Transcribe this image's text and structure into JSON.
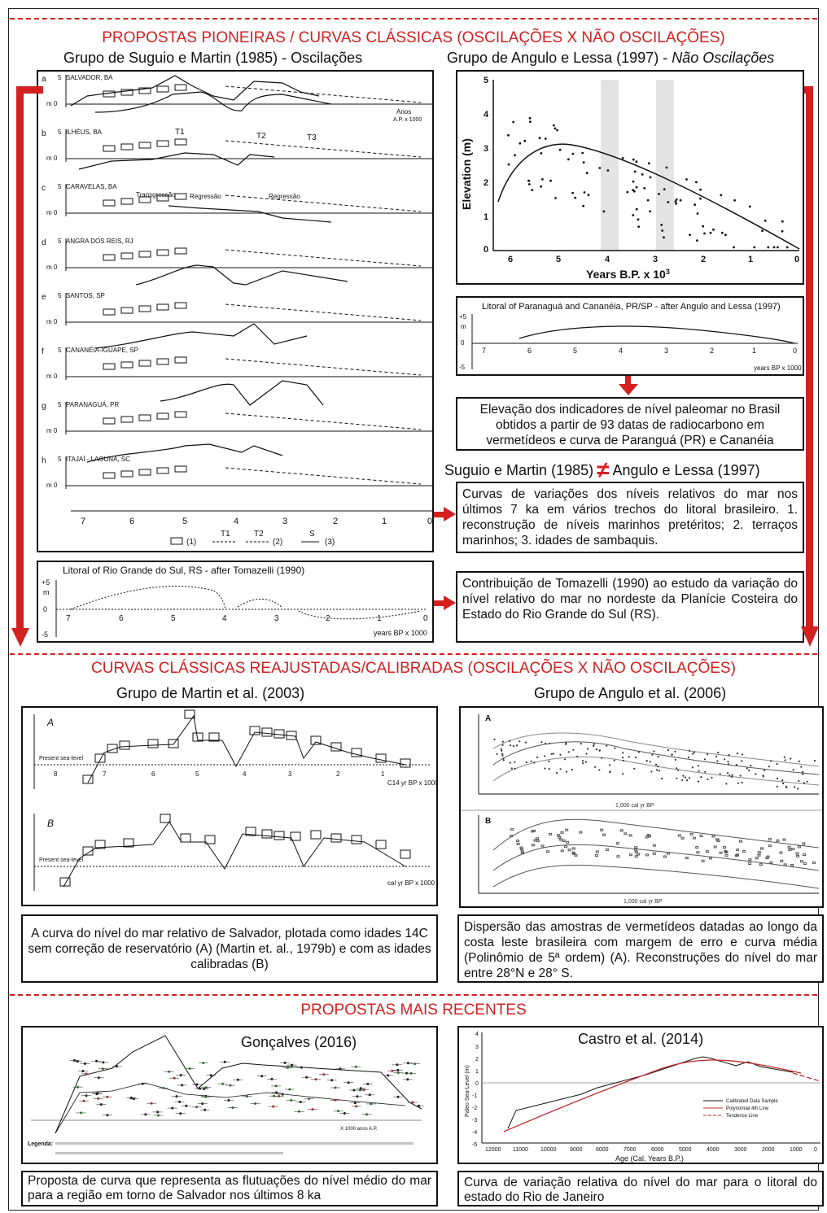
{
  "section1": {
    "title": "PROPOSTAS PIONEIRAS / CURVAS CLÁSSICAS (OSCILAÇÕES X NÃO OSCILAÇÕES)",
    "group_left": "Grupo de Suguio e Martin (1985) - Oscilações",
    "group_right_prefix": "Grupo de Angulo e Lessa (1997) - ",
    "group_right_italic": "Não Oscilações",
    "panels": [
      {
        "letter": "a",
        "site": "SALVADOR, BA"
      },
      {
        "letter": "b",
        "site": "ILHÉUS, BA"
      },
      {
        "letter": "c",
        "site": "CARAVELAS, BA"
      },
      {
        "letter": "d",
        "site": "ANGRA DOS REIS, RJ"
      },
      {
        "letter": "e",
        "site": "SANTOS, SP"
      },
      {
        "letter": "f",
        "site": "CANANÉIA-IGUAPE, SP"
      },
      {
        "letter": "g",
        "site": "PARANAGUÁ, PR"
      },
      {
        "letter": "h",
        "site": "ITAJAÍ - LAGUNA, SC"
      }
    ],
    "panel_axis_top": "5",
    "panel_axis_zero": "m 0",
    "anos_label_1": "Anos",
    "anos_label_2": "A.P. x 1000",
    "transgressao": "Transgressão",
    "regressao": "Regressão",
    "t1": "T1",
    "t2": "T2",
    "t3": "T3",
    "s": "S",
    "x_ticks": [
      "7",
      "6",
      "5",
      "4",
      "3",
      "2",
      "1",
      "0"
    ],
    "legend_1": "(1)",
    "legend_2": "(2)",
    "legend_3": "(3)",
    "tomazelli_title": "Litoral of Rio Grande do Sul, RS - after Tomazelli (1990)",
    "tomazelli_x": [
      "7",
      "6",
      "5",
      "4",
      "3",
      "2",
      "1",
      "0"
    ],
    "tomazelli_xlabel": "years BP x 1000",
    "tomazelli_y": [
      "+5",
      "m",
      "0",
      "-5"
    ],
    "scatter_ylabel": "Elevation (m)",
    "scatter_xlabel": "Years B.P. x 10",
    "scatter_xlabel_sup": "3",
    "scatter_y": [
      "5",
      "4",
      "3",
      "2",
      "1",
      "0"
    ],
    "scatter_x": [
      "6",
      "5",
      "4",
      "3",
      "2",
      "1",
      "0"
    ],
    "paranagua_title": "Litoral of Paranaguá and Cananéia, PR/SP - after Angulo and Lessa (1997)",
    "paranagua_x": [
      "7",
      "6",
      "5",
      "4",
      "3",
      "2",
      "1",
      "0"
    ],
    "paranagua_xlabel": "years BP x 1000",
    "paranagua_y": [
      "+5",
      "m",
      "0",
      "-5"
    ],
    "cap_elevacao": "Elevação dos indicadores de nível paleomar no Brasil obtidos a partir de 93 datas de radiocarbono em vermetídeos e curva de Paranguá (PR) e Cananéia",
    "neq_left": "Suguio e Martin (1985)",
    "neq_symbol": "≠",
    "neq_right": "Angulo e Lessa (1997)",
    "cap_curvas": "Curvas de variações dos níveis relativos do mar nos últimos 7 ka em vários trechos do litoral brasileiro. 1. reconstrução de níveis marinhos pretéritos; 2. terraços marinhos; 3. idades de sambaquis.",
    "cap_tomazelli": "Contribuição de Tomazelli (1990) ao estudo da variação do nível relativo do mar no nordeste da Planície Costeira do Estado do Rio Grande do Sul (RS)."
  },
  "section2": {
    "title": "CURVAS CLÁSSICAS REAJUSTADAS/CALIBRADAS (OSCILAÇÕES X NÃO OSCILAÇÕES)",
    "group_left": "Grupo de Martin et al. (2003)",
    "group_right": "Grupo de Angulo et al. (2006)",
    "martin_a": "A",
    "martin_b": "B",
    "martin_present": "Present sea-level",
    "martin_xa": "C14 yr BP x 1000",
    "martin_xb": "cal yr BP x 1000",
    "martin_ticks": [
      "8",
      "7",
      "6",
      "5",
      "4",
      "3",
      "2",
      "1"
    ],
    "angulo_a": "A",
    "angulo_b": "B",
    "angulo_xlabel": "1,000 cal yr BP",
    "cap_salvador": "A curva do nível do mar relativo de Salvador, plotada como idades 14C sem correção de reservatório (A) (Martin et. al., 1979b) e com as idades calibradas (B)",
    "cap_dispersao": "Dispersão das amostras de vermetídeos datadas ao longo da costa leste brasileira com margem de erro e curva média (Polinômio de 5ª ordem) (A). Reconstruções do nível do mar entre 28°N e 28° S."
  },
  "section3": {
    "title": "PROPOSTAS MAIS RECENTES",
    "goncalves_title": "Gonçalves (2016)",
    "goncalves_xlabel": "X 1000 anos A.P.",
    "goncalves_legend": "Legenda:",
    "castro_title": "Castro et al. (2014)",
    "castro_ylabel": "Paleo Sea-Level (m)",
    "castro_xlabel": "Age (Cal. Years B.P.)",
    "castro_x": [
      "12000",
      "11000",
      "10000",
      "9000",
      "8000",
      "7000",
      "6000",
      "5000",
      "4000",
      "3000",
      "2000",
      "1000",
      "0"
    ],
    "castro_y": [
      "4",
      "3",
      "2",
      "1",
      "0",
      "-1",
      "-2",
      "-3",
      "-4",
      "-5"
    ],
    "castro_legend": [
      "Calibrated Data Sample",
      "Polynomial 4th Line",
      "Tendence Line"
    ],
    "cap_goncalves": "Proposta de curva que representa as flutuações do nível médio do mar para a região em torno de Salvador nos últimos 8 ka",
    "cap_castro": "Curva de variação relativa do nível do mar para o litoral do estado do Rio de Janeiro"
  },
  "colors": {
    "accent": "#d32020",
    "ink": "#111111"
  }
}
